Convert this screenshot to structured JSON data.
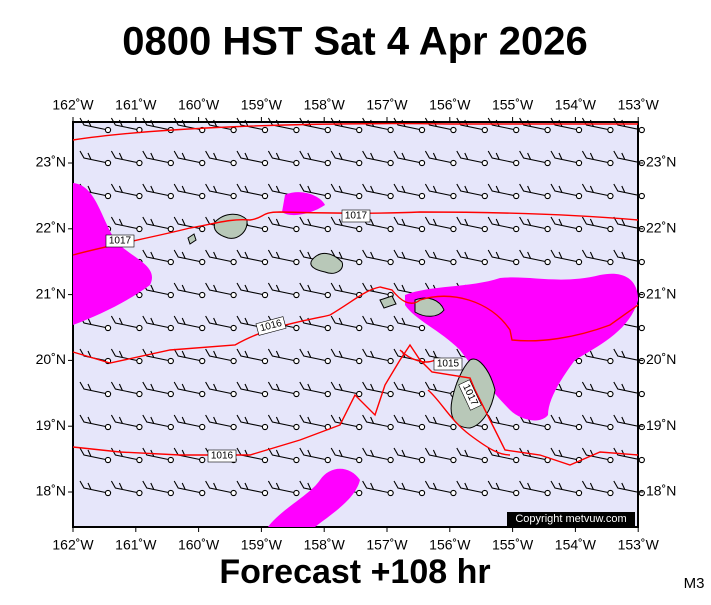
{
  "header": {
    "title": "0800 HST Sat 4 Apr 2026"
  },
  "map": {
    "lon_labels": [
      "162˚W",
      "161˚W",
      "160˚W",
      "159˚W",
      "158˚W",
      "157˚W",
      "156˚W",
      "155˚W",
      "154˚W",
      "153˚W"
    ],
    "lat_labels": [
      "23˚N",
      "22˚N",
      "21˚N",
      "20˚N",
      "19˚N",
      "18˚N"
    ],
    "isobar_labels": [
      "1017",
      "1017",
      "1016",
      "1015",
      "1017",
      "1016"
    ],
    "copyright": "Copyright metvuw.com"
  },
  "footer": {
    "text": "Forecast +108 hr",
    "code": "M3"
  }
}
